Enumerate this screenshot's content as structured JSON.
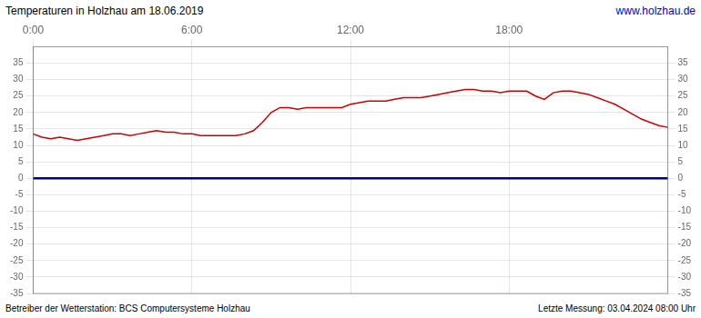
{
  "chart_data": {
    "type": "line",
    "title": "Temperaturen in Holzhau am 18.06.2019",
    "annotations": [
      {
        "text": "www.holzhau.de",
        "color": "#0000cc"
      },
      {
        "text": "Betreiber der Wetterstation: BCS Computersysteme Holzhau"
      },
      {
        "text": "Letzte Messung: 03.04.2024 08:00 Uhr"
      },
      {
        "y": 0,
        "color": "#000080"
      }
    ],
    "x": [
      0,
      20,
      40,
      60,
      80,
      100,
      120,
      140,
      160,
      180,
      200,
      220,
      240,
      260,
      280,
      300,
      320,
      340,
      360,
      380,
      400,
      420,
      440,
      460,
      480,
      500,
      520,
      540,
      560,
      580,
      600,
      620,
      640,
      660,
      680,
      700,
      720,
      740,
      760,
      780,
      800,
      820,
      840,
      860,
      880,
      900,
      920,
      940,
      960,
      980,
      1000,
      1020,
      1040,
      1060,
      1080,
      1100,
      1120,
      1140,
      1160,
      1180,
      1200,
      1220,
      1240,
      1260,
      1280,
      1300,
      1320,
      1340,
      1360,
      1380,
      1400,
      1420,
      1440
    ],
    "values": [
      13.5,
      12.5,
      12.0,
      12.5,
      12.0,
      11.5,
      12.0,
      12.5,
      13.0,
      13.5,
      13.5,
      13.0,
      13.5,
      14.0,
      14.5,
      14.0,
      14.0,
      13.5,
      13.5,
      13.0,
      13.0,
      13.0,
      13.0,
      13.0,
      13.5,
      14.5,
      17.0,
      20.0,
      21.5,
      21.5,
      21.0,
      21.5,
      21.5,
      21.5,
      21.5,
      21.5,
      22.5,
      23.0,
      23.5,
      23.5,
      23.5,
      24.0,
      24.5,
      24.5,
      24.5,
      25.0,
      25.5,
      26.0,
      26.5,
      27.0,
      27.0,
      26.5,
      26.5,
      26.0,
      26.5,
      26.5,
      26.5,
      25.0,
      24.0,
      26.0,
      26.5,
      26.5,
      26.0,
      25.5,
      24.5,
      23.5,
      22.5,
      21.0,
      19.5,
      18.0,
      17.0,
      16.0,
      15.5
    ],
    "color": "#cc0000",
    "xlim": [
      0,
      1440
    ],
    "xticks": [
      {
        "value": 0,
        "label": "0:00"
      },
      {
        "value": 360,
        "label": "6:00"
      },
      {
        "value": 720,
        "label": "12:00"
      },
      {
        "value": 1080,
        "label": "18:00"
      }
    ],
    "ylim": [
      -35,
      40
    ],
    "yticks": [
      -35,
      -30,
      -25,
      -20,
      -15,
      -10,
      -5,
      0,
      5,
      10,
      15,
      20,
      25,
      30,
      35
    ],
    "grid": true
  }
}
